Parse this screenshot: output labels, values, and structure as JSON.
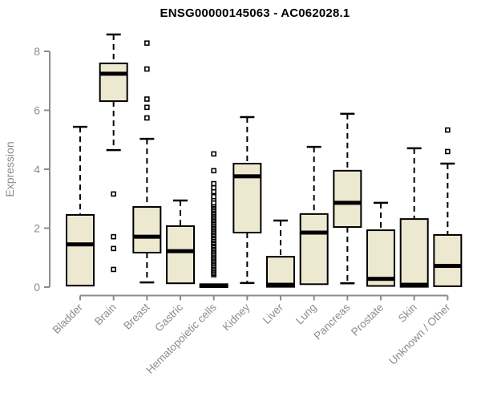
{
  "title": "ENSG00000145063 - AC062028.1",
  "colors": {
    "box_fill": "#EDE8D0",
    "box_border": "#000000",
    "median": "#000000",
    "whisker": "#000000",
    "outlier_stroke": "#000000",
    "outlier_fill": "#ffffff",
    "axis": "#8c8c8c",
    "tick_label": "#8c8c8c",
    "title_color": "#000000",
    "background": "#ffffff"
  },
  "chart_data": {
    "type": "boxplot",
    "title": "ENSG00000145063 - AC062028.1",
    "xlabel": "",
    "ylabel": "Expression",
    "ylim": [
      0,
      8.6
    ],
    "yticks": [
      0,
      2,
      4,
      6,
      8
    ],
    "grid": false,
    "legend": "none",
    "categories": [
      "Bladder",
      "Brain",
      "Breast",
      "Gastric",
      "Hematopoietic cells",
      "Kidney",
      "Liver",
      "Lung",
      "Pancreas",
      "Prostate",
      "Skin",
      "Unknown / Other"
    ],
    "boxes": [
      {
        "category": "Bladder",
        "whisker_low": 0.05,
        "q1": 0.05,
        "median": 1.45,
        "q3": 2.45,
        "whisker_high": 5.44,
        "outliers": []
      },
      {
        "category": "Brain",
        "whisker_low": 4.65,
        "q1": 6.31,
        "median": 7.24,
        "q3": 7.59,
        "whisker_high": 8.57,
        "outliers": [
          3.16,
          1.71,
          1.31,
          0.6
        ]
      },
      {
        "category": "Breast",
        "whisker_low": 0.16,
        "q1": 1.17,
        "median": 1.71,
        "q3": 2.72,
        "whisker_high": 5.03,
        "outliers": [
          8.28,
          7.4,
          6.38,
          6.1,
          5.74
        ]
      },
      {
        "category": "Gastric",
        "whisker_low": 0.13,
        "q1": 0.13,
        "median": 1.22,
        "q3": 2.07,
        "whisker_high": 2.94,
        "outliers": []
      },
      {
        "category": "Hematopoietic cells",
        "whisker_low": 0.0,
        "q1": 0.0,
        "median": 0.04,
        "q3": 0.1,
        "whisker_high": 0.1,
        "outliers": [
          0.42,
          0.47,
          0.52,
          0.58,
          0.63,
          0.69,
          0.74,
          0.8,
          0.86,
          0.91,
          0.97,
          1.02,
          1.08,
          1.13,
          1.19,
          1.25,
          1.3,
          1.36,
          1.41,
          1.47,
          1.52,
          1.58,
          1.63,
          1.69,
          1.75,
          1.8,
          1.86,
          1.91,
          1.97,
          2.02,
          2.08,
          2.13,
          2.19,
          2.25,
          2.3,
          2.36,
          2.41,
          2.47,
          2.52,
          2.58,
          2.63,
          2.69,
          2.75,
          2.8,
          2.86,
          2.99,
          3.07,
          3.24,
          3.37,
          3.51,
          3.95,
          4.52
        ]
      },
      {
        "category": "Kidney",
        "whisker_low": 0.14,
        "q1": 1.85,
        "median": 3.76,
        "q3": 4.19,
        "whisker_high": 5.77,
        "outliers": []
      },
      {
        "category": "Liver",
        "whisker_low": 0.01,
        "q1": 0.01,
        "median": 0.08,
        "q3": 1.03,
        "whisker_high": 2.26,
        "outliers": []
      },
      {
        "category": "Lung",
        "whisker_low": 0.1,
        "q1": 0.1,
        "median": 1.85,
        "q3": 2.48,
        "whisker_high": 4.76,
        "outliers": []
      },
      {
        "category": "Pancreas",
        "whisker_low": 0.13,
        "q1": 2.04,
        "median": 2.86,
        "q3": 3.95,
        "whisker_high": 5.88,
        "outliers": []
      },
      {
        "category": "Prostate",
        "whisker_low": 0.04,
        "q1": 0.04,
        "median": 0.28,
        "q3": 1.93,
        "whisker_high": 2.86,
        "outliers": []
      },
      {
        "category": "Skin",
        "whisker_low": 0.01,
        "q1": 0.01,
        "median": 0.08,
        "q3": 2.31,
        "whisker_high": 4.71,
        "outliers": []
      },
      {
        "category": "Unknown / Other",
        "whisker_low": 0.03,
        "q1": 0.03,
        "median": 0.72,
        "q3": 1.77,
        "whisker_high": 4.19,
        "outliers": [
          5.33,
          4.6
        ]
      }
    ]
  }
}
